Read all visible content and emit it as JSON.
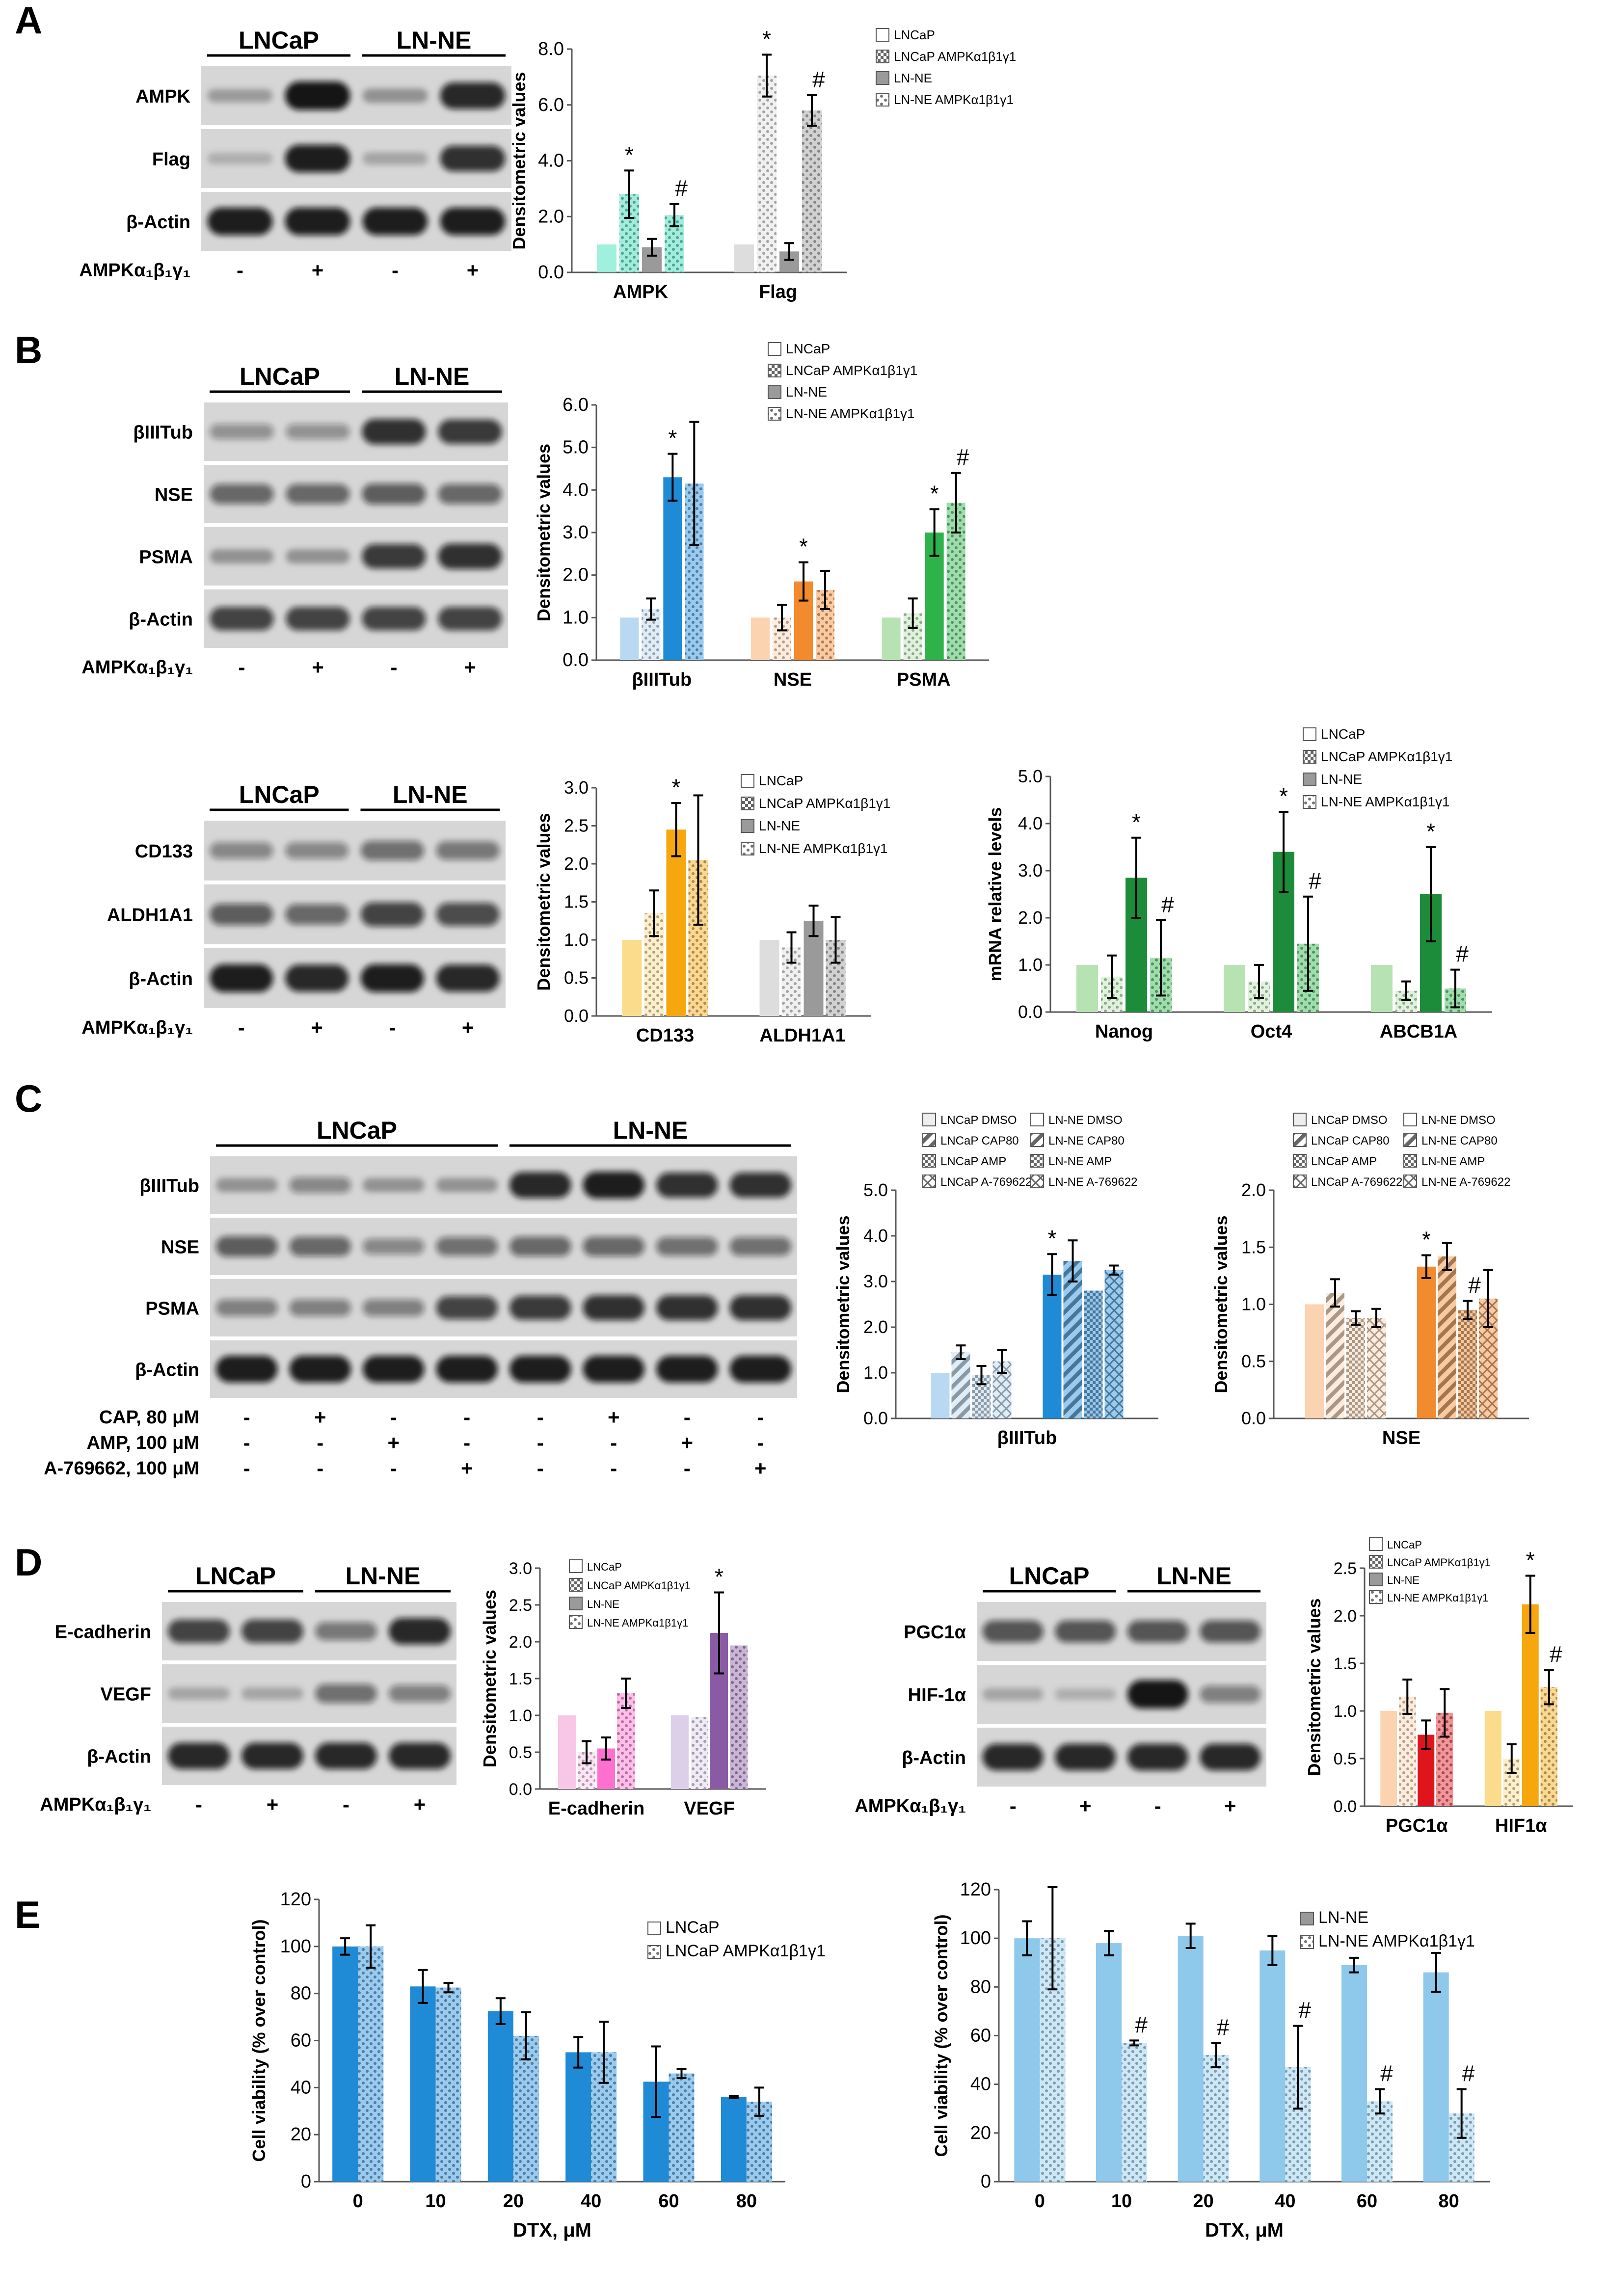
{
  "figure": {
    "panels": [
      {
        "letter": "A"
      },
      {
        "letter": "B"
      },
      {
        "letter": "C"
      },
      {
        "letter": "D"
      },
      {
        "letter": "E"
      }
    ]
  },
  "labels": {
    "lncap": "LNCaP",
    "lnne": "LN-NE",
    "ampk_row": "AMPKα₁β₁γ₁",
    "densitometric": "Densitometric values",
    "mrna": "mRNA relative levels",
    "viability": "Cell viability (% over control)",
    "dtx": "DTX, μM",
    "plus": "+",
    "minus": "-",
    "star": "*",
    "hash": "#"
  },
  "blots": {
    "A": {
      "bands": [
        "AMPK",
        "Flag",
        "β-Actin"
      ],
      "signs": [
        "-",
        "+",
        "-",
        "+"
      ]
    },
    "B1": {
      "bands": [
        "βIIITub",
        "NSE",
        "PSMA",
        "β-Actin"
      ],
      "signs": [
        "-",
        "+",
        "-",
        "+"
      ]
    },
    "B2": {
      "bands": [
        "CD133",
        "ALDH1A1",
        "β-Actin"
      ],
      "signs": [
        "-",
        "+",
        "-",
        "+"
      ]
    },
    "C": {
      "bands": [
        "βIIITub",
        "NSE",
        "PSMA",
        "β-Actin"
      ],
      "treatments": [
        {
          "label": "CAP, 80 μM",
          "signs": [
            "-",
            "+",
            "-",
            "-",
            "-",
            "+",
            "-",
            "-"
          ]
        },
        {
          "label": "AMP, 100 μM",
          "signs": [
            "-",
            "-",
            "+",
            "-",
            "-",
            "-",
            "+",
            "-"
          ]
        },
        {
          "label": "A-769662, 100 μM",
          "signs": [
            "-",
            "-",
            "-",
            "+",
            "-",
            "-",
            "-",
            "+"
          ]
        }
      ]
    },
    "D1": {
      "bands": [
        "E-cadherin",
        "VEGF",
        "β-Actin"
      ],
      "signs": [
        "-",
        "+",
        "-",
        "+"
      ]
    },
    "D2": {
      "bands": [
        "PGC1α",
        "HIF-1α",
        "β-Actin"
      ],
      "signs": [
        "-",
        "+",
        "-",
        "+"
      ]
    }
  },
  "legends": {
    "four": [
      "LNCaP",
      "LNCaP AMPKα1β1γ1",
      "LN-NE",
      "LN-NE AMPKα1β1γ1"
    ],
    "c_left": [
      "LNCaP DMSO",
      "LNCaP CAP80",
      "LNCaP AMP",
      "LNCaP A-769622"
    ],
    "c_right": [
      "LN-NE DMSO",
      "LN-NE CAP80",
      "LN-NE AMP",
      "LN-NE A-769622"
    ],
    "e1": [
      "LNCaP",
      "LNCaP AMPKα1β1γ1"
    ],
    "e2": [
      "LN-NE",
      "LN-NE AMPKα1β1γ1"
    ]
  },
  "colors": {
    "teal": "#2fd8b4",
    "light_teal": "#9ff0dc",
    "blue": "#1f8ad6",
    "light_blue": "#b9d8f2",
    "orange": "#f28a2e",
    "light_orange": "#fbd3b1",
    "green": "#2db34a",
    "light_green": "#b7e3b2",
    "dark_green": "#1c8c3a",
    "gold": "#f5a70d",
    "light_gold": "#fbdc8c",
    "grey": "#9a9a9a",
    "light_grey": "#dddddd",
    "pink": "#ff6fcf",
    "light_pink": "#f8c7e8",
    "purple": "#8b5aa5",
    "light_purple": "#dcd0e8",
    "red": "#e0141b",
    "peach": "#fbd3b1",
    "sky": "#8ec9ec"
  },
  "chart_data": [
    {
      "id": "A",
      "type": "bar",
      "ylabel": "Densitometric values",
      "ylim": [
        0,
        8
      ],
      "ticks": [
        "0.0",
        "2.0",
        "4.0",
        "6.0",
        "8.0"
      ],
      "categories": [
        "AMPK",
        "Flag"
      ],
      "series": [
        {
          "name": "LNCaP",
          "values": [
            1.0,
            1.0
          ],
          "errors": [
            0,
            0
          ]
        },
        {
          "name": "LNCaP AMPKα1β1γ1",
          "values": [
            2.8,
            7.05
          ],
          "errors": [
            0.85,
            0.75
          ]
        },
        {
          "name": "LN-NE",
          "values": [
            0.9,
            0.75
          ],
          "errors": [
            0.3,
            0.3
          ]
        },
        {
          "name": "LN-NE AMPKα1β1γ1",
          "values": [
            2.05,
            5.8
          ],
          "errors": [
            0.4,
            0.55
          ]
        }
      ],
      "annotations": [
        {
          "category": 0,
          "series": 1,
          "text": "*"
        },
        {
          "category": 0,
          "series": 3,
          "text": "#"
        },
        {
          "category": 1,
          "series": 1,
          "text": "*"
        },
        {
          "category": 1,
          "series": 3,
          "text": "#"
        }
      ]
    },
    {
      "id": "B1",
      "type": "bar",
      "ylabel": "Densitometric values",
      "ylim": [
        0,
        6
      ],
      "ticks": [
        "0.0",
        "1.0",
        "2.0",
        "3.0",
        "4.0",
        "5.0",
        "6.0"
      ],
      "categories": [
        "βIIITub",
        "NSE",
        "PSMA"
      ],
      "series": [
        {
          "name": "LNCaP",
          "values": [
            1.0,
            1.0,
            1.0
          ],
          "errors": [
            0,
            0,
            0
          ]
        },
        {
          "name": "LNCaP AMPKα1β1γ1",
          "values": [
            1.2,
            1.0,
            1.1
          ],
          "errors": [
            0.25,
            0.3,
            0.35
          ]
        },
        {
          "name": "LN-NE",
          "values": [
            4.3,
            1.85,
            3.0
          ],
          "errors": [
            0.55,
            0.45,
            0.55
          ]
        },
        {
          "name": "LN-NE AMPKα1β1γ1",
          "values": [
            4.15,
            1.65,
            3.7
          ],
          "errors": [
            1.45,
            0.45,
            0.7
          ]
        }
      ],
      "annotations": [
        {
          "category": 0,
          "series": 2,
          "text": "*"
        },
        {
          "category": 1,
          "series": 2,
          "text": "*"
        },
        {
          "category": 2,
          "series": 2,
          "text": "*"
        },
        {
          "category": 2,
          "series": 3,
          "text": "#"
        }
      ]
    },
    {
      "id": "B2",
      "type": "bar",
      "ylabel": "Densitometric values",
      "ylim": [
        0,
        3
      ],
      "ticks": [
        "0.0",
        "0.5",
        "1.0",
        "1.5",
        "2.0",
        "2.5",
        "3.0"
      ],
      "categories": [
        "CD133",
        "ALDH1A1"
      ],
      "series": [
        {
          "name": "LNCaP",
          "values": [
            1.0,
            1.0
          ],
          "errors": [
            0,
            0
          ]
        },
        {
          "name": "LNCaP AMPKα1β1γ1",
          "values": [
            1.35,
            0.9
          ],
          "errors": [
            0.3,
            0.2
          ]
        },
        {
          "name": "LN-NE",
          "values": [
            2.45,
            1.25
          ],
          "errors": [
            0.35,
            0.2
          ]
        },
        {
          "name": "LN-NE AMPKα1β1γ1",
          "values": [
            2.05,
            1.0
          ],
          "errors": [
            0.85,
            0.3
          ]
        }
      ],
      "annotations": [
        {
          "category": 0,
          "series": 2,
          "text": "*"
        }
      ]
    },
    {
      "id": "B3",
      "type": "bar",
      "ylabel": "mRNA relative levels",
      "ylim": [
        0,
        5
      ],
      "ticks": [
        "0.0",
        "1.0",
        "2.0",
        "3.0",
        "4.0",
        "5.0"
      ],
      "categories": [
        "Nanog",
        "Oct4",
        "ABCB1A"
      ],
      "series": [
        {
          "name": "LNCaP",
          "values": [
            1.0,
            1.0,
            1.0
          ],
          "errors": [
            0,
            0,
            0
          ]
        },
        {
          "name": "LNCaP AMPKα1β1γ1",
          "values": [
            0.75,
            0.65,
            0.45
          ],
          "errors": [
            0.45,
            0.35,
            0.2
          ]
        },
        {
          "name": "LN-NE",
          "values": [
            2.85,
            3.4,
            2.5
          ],
          "errors": [
            0.85,
            0.85,
            1.0
          ]
        },
        {
          "name": "LN-NE AMPKα1β1γ1",
          "values": [
            1.15,
            1.45,
            0.5
          ],
          "errors": [
            0.8,
            1.0,
            0.4
          ]
        }
      ],
      "annotations": [
        {
          "category": 0,
          "series": 2,
          "text": "*"
        },
        {
          "category": 0,
          "series": 3,
          "text": "#"
        },
        {
          "category": 1,
          "series": 2,
          "text": "*"
        },
        {
          "category": 1,
          "series": 3,
          "text": "#"
        },
        {
          "category": 2,
          "series": 2,
          "text": "*"
        },
        {
          "category": 2,
          "series": 3,
          "text": "#"
        }
      ]
    },
    {
      "id": "C1",
      "type": "bar",
      "ylabel": "Densitometric values",
      "ylim": [
        0,
        5
      ],
      "ticks": [
        "0.0",
        "1.0",
        "2.0",
        "3.0",
        "4.0",
        "5.0"
      ],
      "categories": [
        "βIIITub"
      ],
      "series": [
        {
          "name": "LNCaP DMSO",
          "values": [
            1.0
          ],
          "errors": [
            0
          ]
        },
        {
          "name": "LNCaP CAP80",
          "values": [
            1.45
          ],
          "errors": [
            0.15
          ]
        },
        {
          "name": "LNCaP AMP",
          "values": [
            0.95
          ],
          "errors": [
            0.2
          ]
        },
        {
          "name": "LNCaP A-769622",
          "values": [
            1.25
          ],
          "errors": [
            0.25
          ]
        },
        {
          "name": "LN-NE DMSO",
          "values": [
            3.15
          ],
          "errors": [
            0.45
          ]
        },
        {
          "name": "LN-NE CAP80",
          "values": [
            3.45
          ],
          "errors": [
            0.45
          ]
        },
        {
          "name": "LN-NE AMP",
          "values": [
            2.8
          ],
          "errors": [
            0
          ]
        },
        {
          "name": "LN-NE A-769622",
          "values": [
            3.25
          ],
          "errors": [
            0.1
          ]
        }
      ],
      "annotations": [
        {
          "category": 0,
          "series": 4,
          "text": "*"
        }
      ]
    },
    {
      "id": "C2",
      "type": "bar",
      "ylabel": "Densitometric values",
      "ylim": [
        0,
        2
      ],
      "ticks": [
        "0.0",
        "0.5",
        "1.0",
        "1.5",
        "2.0"
      ],
      "categories": [
        "NSE"
      ],
      "series": [
        {
          "name": "LNCaP DMSO",
          "values": [
            1.0
          ],
          "errors": [
            0
          ]
        },
        {
          "name": "LNCaP CAP80",
          "values": [
            1.1
          ],
          "errors": [
            0.12
          ]
        },
        {
          "name": "LNCaP AMP",
          "values": [
            0.88
          ],
          "errors": [
            0.06
          ]
        },
        {
          "name": "LNCaP A-769622",
          "values": [
            0.88
          ],
          "errors": [
            0.08
          ]
        },
        {
          "name": "LN-NE DMSO",
          "values": [
            1.33
          ],
          "errors": [
            0.1
          ]
        },
        {
          "name": "LN-NE CAP80",
          "values": [
            1.42
          ],
          "errors": [
            0.12
          ]
        },
        {
          "name": "LN-NE AMP",
          "values": [
            0.95
          ],
          "errors": [
            0.08
          ]
        },
        {
          "name": "LN-NE A-769622",
          "values": [
            1.05
          ],
          "errors": [
            0.25
          ]
        }
      ],
      "annotations": [
        {
          "category": 0,
          "series": 4,
          "text": "*"
        },
        {
          "category": 0,
          "series": 6,
          "text": "#"
        }
      ]
    },
    {
      "id": "D1",
      "type": "bar",
      "ylabel": "Densitometric values",
      "ylim": [
        0,
        3
      ],
      "ticks": [
        "0.0",
        "0.5",
        "1.0",
        "1.5",
        "2.0",
        "2.5",
        "3.0"
      ],
      "categories": [
        "E-cadherin",
        "VEGF"
      ],
      "series": [
        {
          "name": "LNCaP",
          "values": [
            1.0,
            1.0
          ],
          "errors": [
            0,
            0
          ]
        },
        {
          "name": "LNCaP AMPKα1β1γ1",
          "values": [
            0.5,
            0.98
          ],
          "errors": [
            0.15,
            0
          ]
        },
        {
          "name": "LN-NE",
          "values": [
            0.55,
            2.12
          ],
          "errors": [
            0.15,
            0.55
          ]
        },
        {
          "name": "LN-NE AMPKα1β1γ1",
          "values": [
            1.3,
            1.95
          ],
          "errors": [
            0.2,
            0
          ]
        }
      ],
      "annotations": [
        {
          "category": 1,
          "series": 2,
          "text": "*"
        }
      ]
    },
    {
      "id": "D2",
      "type": "bar",
      "ylabel": "Densitometric values",
      "ylim": [
        0,
        2.5
      ],
      "ticks": [
        "0.0",
        "0.5",
        "1.0",
        "1.5",
        "2.0",
        "2.5"
      ],
      "categories": [
        "PGC1α",
        "HIF1α"
      ],
      "series": [
        {
          "name": "LNCaP",
          "values": [
            1.0,
            1.0
          ],
          "errors": [
            0,
            0
          ]
        },
        {
          "name": "LNCaP AMPKα1β1γ1",
          "values": [
            1.15,
            0.5
          ],
          "errors": [
            0.18,
            0.15
          ]
        },
        {
          "name": "LN-NE",
          "values": [
            0.75,
            2.12
          ],
          "errors": [
            0.15,
            0.3
          ]
        },
        {
          "name": "LN-NE AMPKα1β1γ1",
          "values": [
            0.98,
            1.25
          ],
          "errors": [
            0.25,
            0.18
          ]
        }
      ],
      "annotations": [
        {
          "category": 1,
          "series": 2,
          "text": "*"
        },
        {
          "category": 1,
          "series": 3,
          "text": "#"
        }
      ]
    },
    {
      "id": "E1",
      "type": "bar",
      "ylabel": "Cell viability (% over control)",
      "xlabel": "DTX, μM",
      "ylim": [
        0,
        120
      ],
      "ticks": [
        "0",
        "20",
        "40",
        "60",
        "80",
        "100",
        "120"
      ],
      "categories": [
        "0",
        "10",
        "20",
        "40",
        "60",
        "80"
      ],
      "series": [
        {
          "name": "LNCaP",
          "values": [
            100,
            83,
            72.5,
            55,
            42.5,
            36
          ],
          "errors": [
            3.5,
            7,
            5.5,
            6.5,
            15,
            0.5
          ]
        },
        {
          "name": "LNCaP AMPKα1β1γ1",
          "values": [
            100,
            82.5,
            62,
            55,
            46,
            34
          ],
          "errors": [
            9,
            2,
            10,
            13,
            2,
            6
          ]
        }
      ],
      "annotations": []
    },
    {
      "id": "E2",
      "type": "bar",
      "ylabel": "Cell viability (% over control)",
      "xlabel": "DTX, μM",
      "ylim": [
        0,
        120
      ],
      "ticks": [
        "0",
        "20",
        "40",
        "60",
        "80",
        "100",
        "120"
      ],
      "categories": [
        "0",
        "10",
        "20",
        "40",
        "60",
        "80"
      ],
      "series": [
        {
          "name": "LN-NE",
          "values": [
            100,
            98,
            101,
            95,
            89,
            86
          ],
          "errors": [
            7,
            5,
            5,
            6,
            3,
            8
          ]
        },
        {
          "name": "LN-NE AMPKα1β1γ1",
          "values": [
            100,
            57,
            52,
            47,
            33,
            28
          ],
          "errors": [
            21,
            1,
            5,
            17,
            5,
            10
          ]
        }
      ],
      "annotations": [
        {
          "category": 1,
          "series": 1,
          "text": "#"
        },
        {
          "category": 2,
          "series": 1,
          "text": "#"
        },
        {
          "category": 3,
          "series": 1,
          "text": "#"
        },
        {
          "category": 4,
          "series": 1,
          "text": "#"
        },
        {
          "category": 5,
          "series": 1,
          "text": "#"
        }
      ]
    }
  ]
}
